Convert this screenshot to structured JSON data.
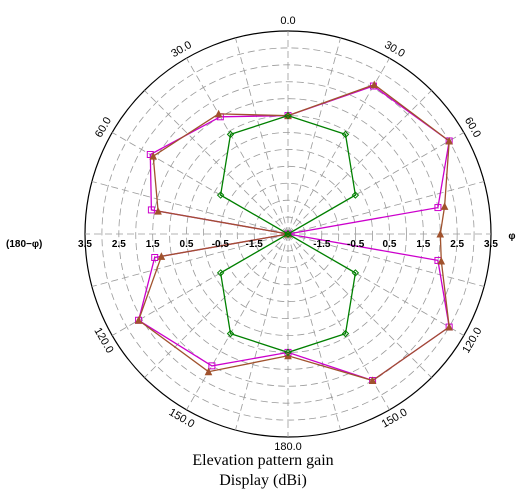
{
  "chart_data": {
    "type": "polar-line",
    "title": "Elevation pattern gain",
    "subtitle": "Display (dBi)",
    "left_end_label": "(180−φ)",
    "right_end_label": "φ",
    "radial_tick_labels_left": [
      "3.5",
      "2.5",
      "1.5",
      "0.5",
      "-0.5",
      "-1.5"
    ],
    "radial_tick_labels_right": [
      "-1.5",
      "-0.5",
      "0.5",
      "1.5",
      "2.5",
      "3.5"
    ],
    "angle_labels": [
      {
        "text": "0.0",
        "angle": 0
      },
      {
        "text": "30.0",
        "angle": 30
      },
      {
        "text": "60.0",
        "angle": 60
      },
      {
        "text": "120.0",
        "angle": 120
      },
      {
        "text": "150.0",
        "angle": 150
      },
      {
        "text": "180.0",
        "angle": 180
      },
      {
        "text": "150.0",
        "angle": 210
      },
      {
        "text": "120.0",
        "angle": 240
      },
      {
        "text": "60.0",
        "angle": 300
      },
      {
        "text": "30.0",
        "angle": 330
      }
    ],
    "r_range": [
      -2.5,
      3.5
    ],
    "grid": true,
    "series": [
      {
        "color": "#cc00cc",
        "marker": "square",
        "angles": [
          0,
          30,
          60,
          80,
          90,
          100,
          120,
          150,
          180,
          210,
          240,
          260,
          270,
          280,
          300,
          330,
          360
        ],
        "values": [
          1.0,
          2.55,
          3.0,
          2.0,
          -2.5,
          2.0,
          3.0,
          2.5,
          1.0,
          2.0,
          2.6,
          1.5,
          -2.5,
          1.6,
          2.2,
          1.5,
          1.0
        ]
      },
      {
        "color": "#a0522d",
        "marker": "triangle",
        "angles": [
          0,
          30,
          60,
          80,
          90,
          100,
          120,
          150,
          180,
          210,
          240,
          260,
          270,
          280,
          300,
          330,
          360
        ],
        "values": [
          1.0,
          2.6,
          3.0,
          2.2,
          2.0,
          2.1,
          3.0,
          2.5,
          1.1,
          2.2,
          2.6,
          1.3,
          -2.5,
          1.4,
          2.1,
          1.6,
          1.0
        ]
      },
      {
        "color": "#008000",
        "marker": "diamond",
        "angles": [
          0,
          30,
          60,
          90,
          120,
          150,
          180,
          210,
          240,
          270,
          300,
          330,
          360
        ],
        "values": [
          1.0,
          0.9,
          -0.2,
          -2.5,
          -0.2,
          0.9,
          1.0,
          0.9,
          -0.2,
          -2.5,
          -0.2,
          0.9,
          1.0
        ]
      }
    ]
  }
}
